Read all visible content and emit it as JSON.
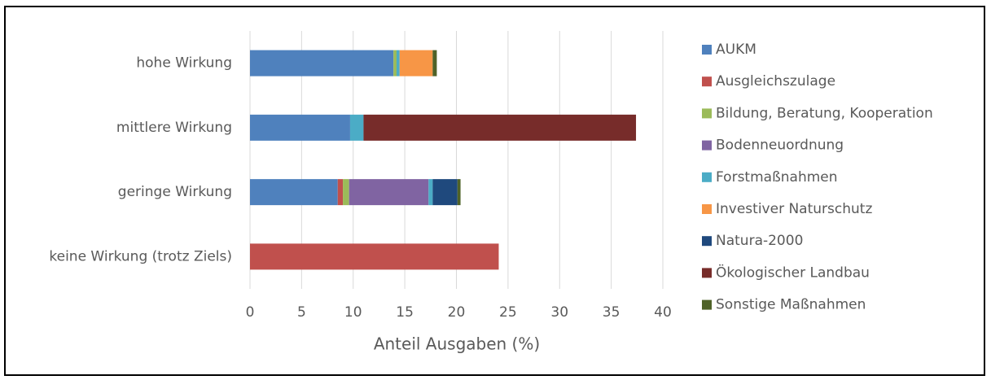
{
  "chart_data": {
    "type": "stacked-barh",
    "x_label": "Anteil Ausgaben (%)",
    "categories": [
      "hohe Wirkung",
      "mittlere Wirkung",
      "geringe Wirkung",
      "keine Wirkung (trotz Ziels)"
    ],
    "series": [
      {
        "name": "AUKM",
        "color": "#4f81bd",
        "values": [
          13.9,
          9.7,
          8.5,
          0
        ]
      },
      {
        "name": "Ausgleichszulage",
        "color": "#c0504d",
        "values": [
          0,
          0,
          0.5,
          24.1
        ]
      },
      {
        "name": "Bildung, Beratung, Kooperation",
        "color": "#9bbb59",
        "values": [
          0.3,
          0,
          0.6,
          0
        ]
      },
      {
        "name": "Bodenneuordnung",
        "color": "#8064a2",
        "values": [
          0,
          0,
          7.7,
          0
        ]
      },
      {
        "name": "Forstmaßnahmen",
        "color": "#4bacc6",
        "values": [
          0.3,
          1.3,
          0.4,
          0
        ]
      },
      {
        "name": "Investiver Naturschutz",
        "color": "#f79646",
        "values": [
          3.2,
          0,
          0,
          0
        ]
      },
      {
        "name": "Natura-2000",
        "color": "#1f497d",
        "values": [
          0,
          0,
          2.4,
          0
        ]
      },
      {
        "name": "Ökologischer Landbau",
        "color": "#772c2a",
        "values": [
          0,
          26.4,
          0,
          0
        ]
      },
      {
        "name": "Sonstige Maßnahmen",
        "color": "#4f6228",
        "values": [
          0.4,
          0,
          0.3,
          0
        ]
      }
    ],
    "xlim": [
      0,
      40
    ],
    "xticks": [
      0,
      5,
      10,
      15,
      20,
      25,
      30,
      35,
      40
    ],
    "grid": true,
    "legend": "right"
  }
}
